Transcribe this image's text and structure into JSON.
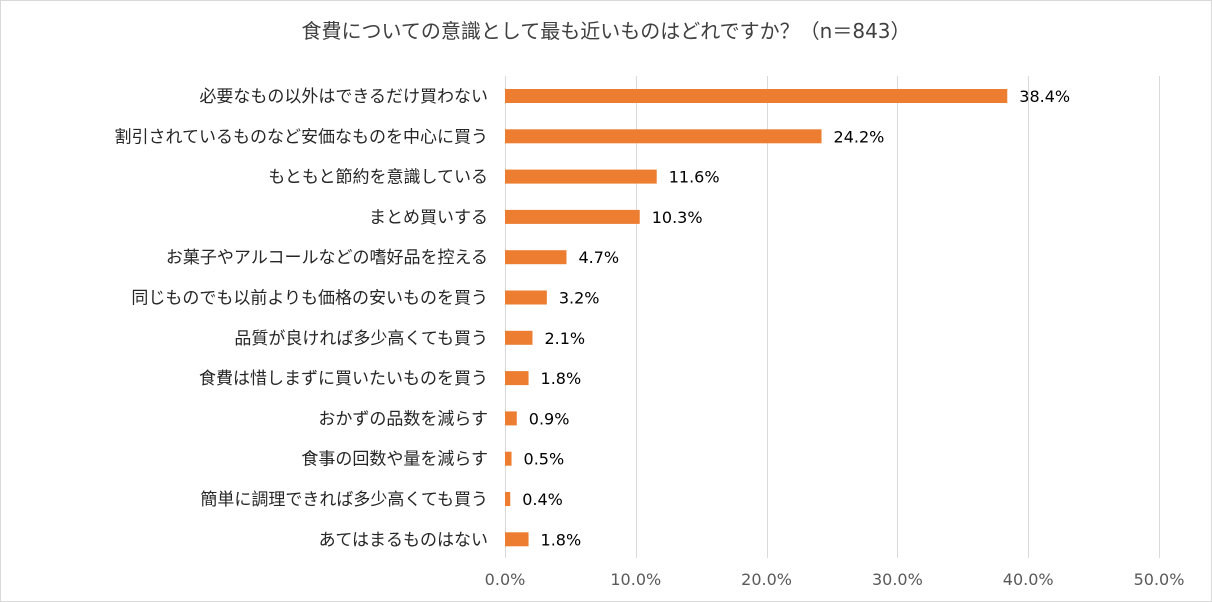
{
  "chart_data": {
    "type": "bar",
    "orientation": "horizontal",
    "title": "食費についての意識として最も近いものはどれですか？（n＝843）",
    "categories": [
      "必要なもの以外はできるだけ買わない",
      "割引されているものなど安価なものを中心に買う",
      "もともと節約を意識している",
      "まとめ買いする",
      "お菓子やアルコールなどの嗜好品を控える",
      "同じものでも以前よりも価格の安いものを買う",
      "品質が良ければ多少高くても買う",
      "食費は惜しまずに買いたいものを買う",
      "おかずの品数を減らす",
      "食事の回数や量を減らす",
      "簡単に調理できれば多少高くても買う",
      "あてはまるものはない"
    ],
    "values": [
      38.4,
      24.2,
      11.6,
      10.3,
      4.7,
      3.2,
      2.1,
      1.8,
      0.9,
      0.5,
      0.4,
      1.8
    ],
    "value_labels": [
      "38.4%",
      "24.2%",
      "11.6%",
      "10.3%",
      "4.7%",
      "3.2%",
      "2.1%",
      "1.8%",
      "0.9%",
      "0.5%",
      "0.4%",
      "1.8%"
    ],
    "xlim": [
      0,
      50
    ],
    "xticks": [
      0,
      10,
      20,
      30,
      40,
      50
    ],
    "xtick_labels": [
      "0.0%",
      "10.0%",
      "20.0%",
      "30.0%",
      "40.0%",
      "50.0%"
    ],
    "bar_color": "#ED7D31",
    "grid": true
  }
}
